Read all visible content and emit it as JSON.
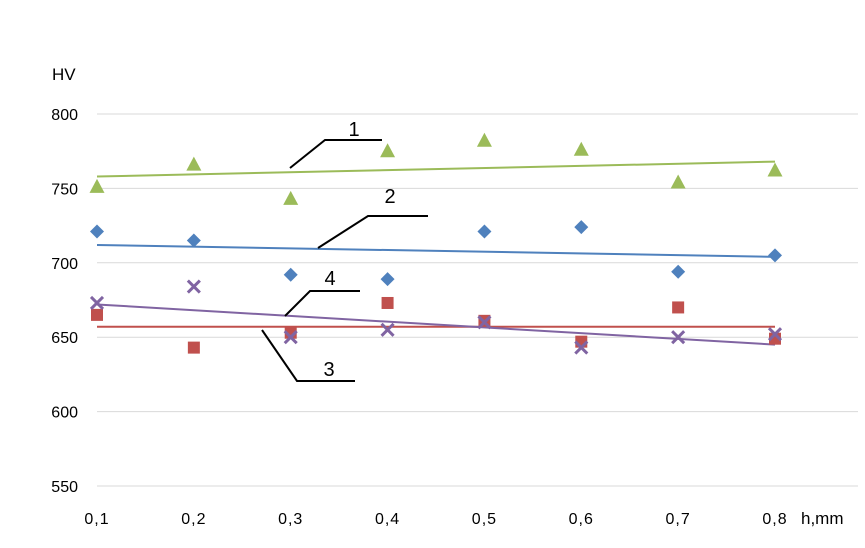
{
  "chart_data": {
    "type": "scatter",
    "xlabel": "h,mm",
    "ylabel": "HV",
    "x": [
      0.1,
      0.2,
      0.3,
      0.4,
      0.5,
      0.6,
      0.7,
      0.8
    ],
    "x_tick_labels": [
      "0,1",
      "0,2",
      "0,3",
      "0,4",
      "0,5",
      "0,6",
      "0,7",
      "0,8"
    ],
    "y_ticks": [
      550,
      600,
      650,
      700,
      750,
      800
    ],
    "y_tick_labels": [
      "550",
      "600",
      "650",
      "700",
      "750",
      "800"
    ],
    "ylim": [
      550,
      800
    ],
    "grid": "horizontal",
    "series": [
      {
        "marker": "triangle",
        "color": "#9bbb59",
        "values": [
          751,
          766,
          743,
          775,
          782,
          776,
          754,
          762
        ],
        "trend": [
          758,
          768
        ]
      },
      {
        "marker": "diamond",
        "color": "#4f81bd",
        "values": [
          721,
          715,
          692,
          689,
          721,
          724,
          694,
          705
        ],
        "trend": [
          712,
          704
        ]
      },
      {
        "marker": "square",
        "color": "#c0504d",
        "values": [
          665,
          643,
          653,
          673,
          661,
          647,
          670,
          649
        ],
        "trend": [
          657,
          657
        ]
      },
      {
        "marker": "x",
        "color": "#8064a2",
        "values": [
          673,
          684,
          650,
          655,
          660,
          643,
          650,
          652
        ],
        "trend": [
          672,
          645
        ]
      }
    ],
    "callouts": [
      "1",
      "2",
      "3",
      "4"
    ]
  }
}
